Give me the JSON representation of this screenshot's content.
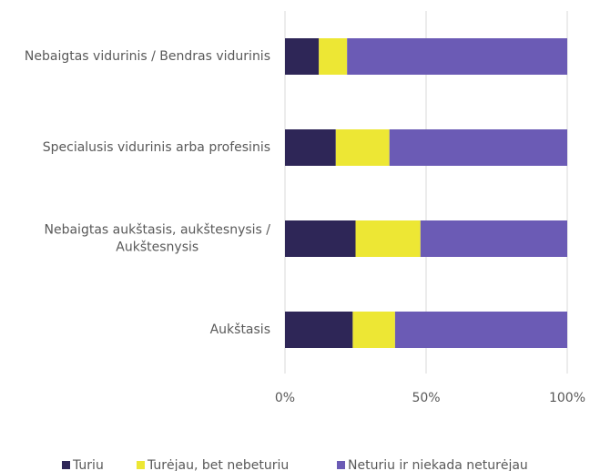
{
  "chart_data": {
    "type": "stacked_barh",
    "categories": [
      "Nebaigtas vidurinis / Bendras vidurinis",
      "Specialusis vidurinis arba profesinis",
      "Nebaigtas aukštasis, aukštesnysis / Aukštesnysis",
      "Aukštasis"
    ],
    "series": [
      {
        "name": "Turiu",
        "color": "#2e2657",
        "values": [
          12,
          18,
          25,
          24
        ]
      },
      {
        "name": "Turėjau, bet nebeturiu",
        "color": "#ede734",
        "values": [
          10,
          19,
          23,
          15
        ]
      },
      {
        "name": "Neturiu ir niekada neturėjau",
        "color": "#6b5bb5",
        "values": [
          78,
          63,
          52,
          61
        ]
      }
    ],
    "xlim": [
      0,
      100
    ],
    "xticks": [
      {
        "value": 0,
        "label": "0%"
      },
      {
        "value": 50,
        "label": "50%"
      },
      {
        "value": 100,
        "label": "100%"
      }
    ],
    "grid": true,
    "legend": "bottom"
  }
}
